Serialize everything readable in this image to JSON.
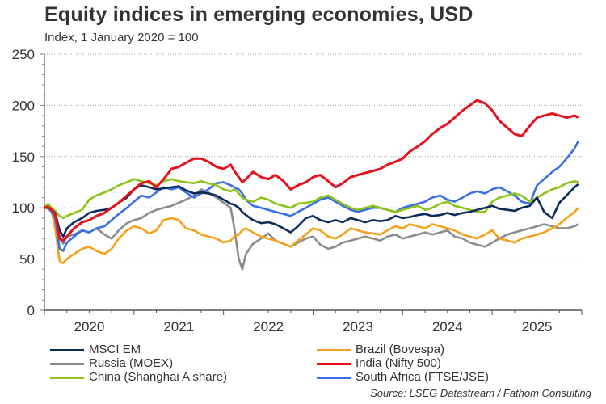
{
  "chart_data": {
    "type": "line",
    "title": "Equity indices in emerging economies, USD",
    "subtitle": "Index, 1 January 2020 = 100",
    "xlabel": "",
    "ylabel": "",
    "ylim": [
      0,
      250
    ],
    "yticks": [
      0,
      50,
      100,
      150,
      200,
      250
    ],
    "ytick_labels": [
      "0",
      "50",
      "100",
      "150",
      "200",
      "250"
    ],
    "xlim": [
      2020.0,
      2026.0
    ],
    "xtick_labels": [
      "2020",
      "2021",
      "2022",
      "2023",
      "2024",
      "2025"
    ],
    "grid": "horizontal dotted at major y ticks",
    "legend_position": "bottom",
    "x": [
      2020.0,
      2020.04,
      2020.08,
      2020.12,
      2020.17,
      2020.21,
      2020.25,
      2020.33,
      2020.42,
      2020.5,
      2020.58,
      2020.67,
      2020.75,
      2020.83,
      2020.92,
      2021.0,
      2021.08,
      2021.17,
      2021.25,
      2021.33,
      2021.42,
      2021.5,
      2021.58,
      2021.67,
      2021.75,
      2021.83,
      2021.92,
      2022.0,
      2022.08,
      2022.12,
      2022.17,
      2022.21,
      2022.25,
      2022.33,
      2022.42,
      2022.5,
      2022.58,
      2022.67,
      2022.75,
      2022.83,
      2022.92,
      2023.0,
      2023.08,
      2023.17,
      2023.25,
      2023.33,
      2023.42,
      2023.5,
      2023.58,
      2023.67,
      2023.75,
      2023.83,
      2023.92,
      2024.0,
      2024.08,
      2024.17,
      2024.25,
      2024.33,
      2024.42,
      2024.5,
      2024.58,
      2024.67,
      2024.75,
      2024.83,
      2024.92,
      2025.0,
      2025.08,
      2025.17,
      2025.25,
      2025.33,
      2025.42,
      2025.5,
      2025.58,
      2025.67,
      2025.75,
      2025.83,
      2025.92,
      2025.96
    ],
    "series": [
      {
        "name": "MSCI EM",
        "color": "#0b2c5a",
        "values": [
          100,
          101,
          98,
          95,
          78,
          72,
          80,
          86,
          90,
          95,
          97,
          98,
          100,
          105,
          110,
          118,
          122,
          120,
          118,
          119,
          120,
          121,
          117,
          114,
          115,
          114,
          112,
          108,
          104,
          103,
          100,
          96,
          93,
          88,
          85,
          86,
          84,
          80,
          76,
          82,
          90,
          92,
          88,
          86,
          88,
          86,
          90,
          88,
          86,
          88,
          87,
          88,
          92,
          90,
          91,
          93,
          94,
          92,
          93,
          95,
          93,
          95,
          96,
          98,
          100,
          102,
          99,
          98,
          97,
          100,
          102,
          110,
          96,
          90,
          105,
          112,
          120,
          123
        ]
      },
      {
        "name": "Brazil (Bovespa)",
        "color": "#f5a11a",
        "values": [
          100,
          99,
          96,
          80,
          48,
          46,
          50,
          55,
          60,
          62,
          58,
          55,
          60,
          70,
          78,
          82,
          80,
          75,
          78,
          88,
          90,
          88,
          80,
          78,
          74,
          72,
          70,
          66,
          68,
          72,
          74,
          78,
          80,
          76,
          72,
          70,
          68,
          65,
          62,
          68,
          74,
          80,
          78,
          72,
          70,
          74,
          80,
          78,
          76,
          75,
          74,
          78,
          82,
          80,
          84,
          82,
          80,
          84,
          82,
          80,
          78,
          74,
          72,
          70,
          74,
          78,
          70,
          68,
          66,
          70,
          72,
          74,
          76,
          80,
          84,
          90,
          96,
          100
        ]
      },
      {
        "name": "Russia (MOEX)",
        "color": "#8c8c8c",
        "values": [
          100,
          102,
          98,
          92,
          70,
          65,
          72,
          74,
          78,
          76,
          80,
          74,
          70,
          78,
          85,
          88,
          90,
          95,
          98,
          100,
          102,
          105,
          108,
          112,
          118,
          115,
          110,
          105,
          100,
          80,
          50,
          40,
          55,
          65,
          70,
          75,
          68,
          65,
          62,
          66,
          70,
          72,
          64,
          60,
          62,
          66,
          68,
          70,
          72,
          70,
          68,
          72,
          74,
          70,
          72,
          74,
          76,
          74,
          76,
          78,
          72,
          70,
          66,
          64,
          62,
          66,
          70,
          74,
          76,
          78,
          80,
          82,
          84,
          82,
          80,
          80,
          82,
          84
        ]
      },
      {
        "name": "India (Nifty 500)",
        "color": "#e8101a",
        "values": [
          100,
          101,
          98,
          94,
          70,
          68,
          72,
          80,
          86,
          88,
          92,
          95,
          100,
          105,
          112,
          118,
          124,
          126,
          120,
          128,
          138,
          140,
          144,
          148,
          148,
          145,
          140,
          138,
          142,
          136,
          130,
          125,
          128,
          135,
          130,
          128,
          132,
          126,
          118,
          122,
          125,
          130,
          132,
          126,
          120,
          124,
          130,
          132,
          134,
          136,
          138,
          142,
          145,
          148,
          155,
          160,
          165,
          172,
          178,
          182,
          188,
          195,
          200,
          205,
          202,
          195,
          185,
          178,
          172,
          170,
          180,
          188,
          190,
          192,
          190,
          188,
          190,
          188
        ]
      },
      {
        "name": "China (Shanghai A share)",
        "color": "#8cc418",
        "values": [
          100,
          104,
          100,
          97,
          92,
          90,
          92,
          95,
          98,
          108,
          112,
          115,
          118,
          122,
          125,
          128,
          126,
          124,
          122,
          126,
          128,
          126,
          125,
          124,
          126,
          124,
          122,
          118,
          116,
          118,
          114,
          110,
          108,
          106,
          110,
          108,
          104,
          102,
          100,
          104,
          105,
          106,
          110,
          112,
          108,
          104,
          100,
          98,
          100,
          102,
          100,
          98,
          96,
          98,
          100,
          102,
          98,
          100,
          104,
          106,
          102,
          100,
          98,
          96,
          96,
          106,
          110,
          112,
          114,
          112,
          106,
          110,
          114,
          118,
          120,
          124,
          126,
          125
        ]
      },
      {
        "name": "South Africa (FTSE/JSE)",
        "color": "#3a6fe8",
        "values": [
          100,
          100,
          96,
          90,
          60,
          58,
          66,
          72,
          78,
          76,
          80,
          82,
          88,
          94,
          100,
          106,
          112,
          110,
          115,
          120,
          118,
          120,
          115,
          110,
          114,
          118,
          124,
          125,
          122,
          120,
          118,
          114,
          108,
          102,
          100,
          98,
          96,
          94,
          92,
          96,
          100,
          104,
          108,
          110,
          106,
          102,
          98,
          96,
          98,
          100,
          100,
          98,
          96,
          100,
          102,
          104,
          106,
          110,
          112,
          108,
          106,
          110,
          114,
          116,
          114,
          118,
          120,
          116,
          112,
          106,
          104,
          122,
          128,
          135,
          140,
          148,
          158,
          165
        ]
      }
    ]
  },
  "legend": {
    "items": [
      {
        "label": "MSCI EM",
        "color": "#0b2c5a"
      },
      {
        "label": "Brazil (Bovespa)",
        "color": "#f5a11a"
      },
      {
        "label": "Russia (MOEX)",
        "color": "#8c8c8c"
      },
      {
        "label": "India (Nifty 500)",
        "color": "#e8101a"
      },
      {
        "label": "China (Shanghai A share)",
        "color": "#8cc418"
      },
      {
        "label": "South Africa (FTSE/JSE)",
        "color": "#3a6fe8"
      }
    ]
  },
  "source": "Source: LSEG Datastream / Fathom Consulting"
}
